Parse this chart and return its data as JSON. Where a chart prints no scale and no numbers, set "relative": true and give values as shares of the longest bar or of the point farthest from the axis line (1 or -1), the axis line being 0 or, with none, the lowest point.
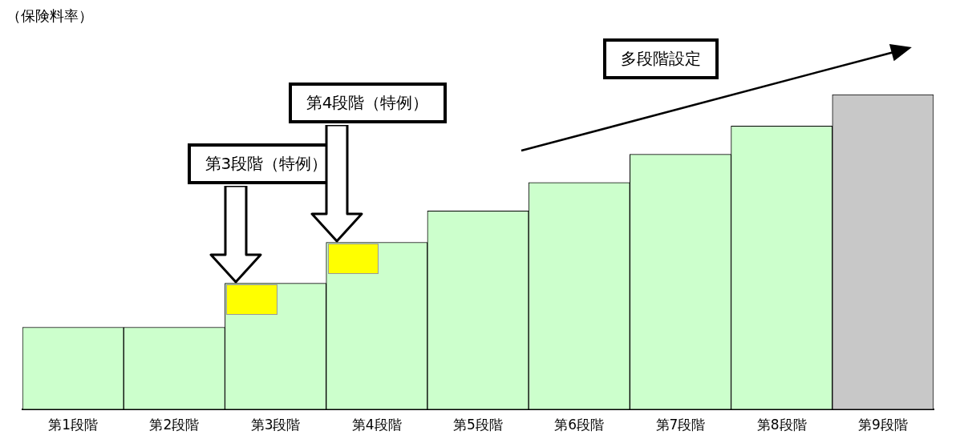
{
  "chart_data": {
    "type": "bar",
    "relative": true,
    "ylabel": "（保険料率）",
    "categories": [
      "第1段階",
      "第2段階",
      "第3段階",
      "第4段階",
      "第5段階",
      "第6段階",
      "第7段階",
      "第8段階",
      "第9段階"
    ],
    "values": [
      0.26,
      0.26,
      0.4,
      0.53,
      0.63,
      0.72,
      0.81,
      0.9,
      1
    ],
    "colors": [
      "#ccffcc",
      "#ccffcc",
      "#ccffcc",
      "#ccffcc",
      "#ccffcc",
      "#ccffcc",
      "#ccffcc",
      "#ccffcc",
      "#c8c8c8"
    ],
    "annotations": [
      "第3段階（特例）",
      "第4段階（特例）",
      "多段階設定"
    ]
  }
}
